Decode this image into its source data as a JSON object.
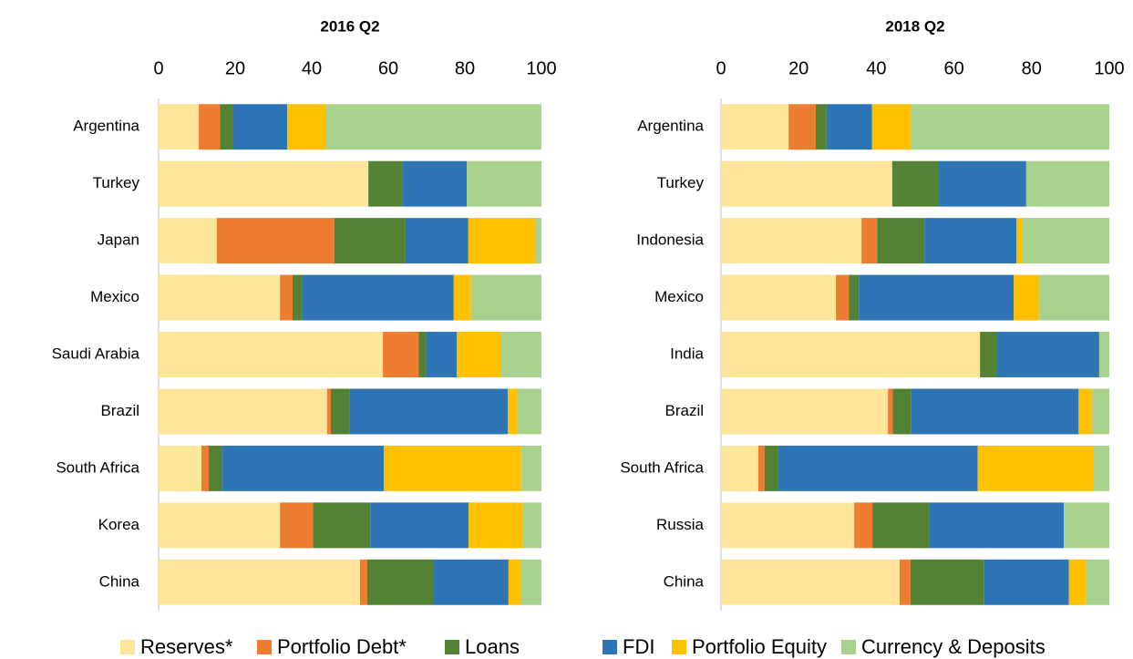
{
  "chart_data": [
    {
      "type": "bar",
      "orientation": "horizontal",
      "stacked": true,
      "title": "2016 Q2",
      "categories": [
        "Argentina",
        "Turkey",
        "Japan",
        "Mexico",
        "Saudi Arabia",
        "Brazil",
        "South Africa",
        "Korea",
        "China"
      ],
      "xlim": [
        0,
        100
      ],
      "xticks": [
        0,
        20,
        40,
        60,
        80,
        100
      ],
      "series": [
        {
          "name": "Reserves*",
          "color": "#fde699",
          "values": [
            10.5,
            54.8,
            15.2,
            31.7,
            58.6,
            44,
            11.2,
            31.7,
            52.6
          ]
        },
        {
          "name": "Portfolio Debt*",
          "color": "#ed7d31",
          "values": [
            5.5,
            0,
            30.7,
            3.3,
            9.3,
            1,
            1.9,
            8.6,
            1.9
          ]
        },
        {
          "name": "Loans",
          "color": "#548235",
          "values": [
            3.3,
            8.8,
            18.6,
            2.6,
            1.9,
            4.8,
            3.6,
            15,
            17.4
          ]
        },
        {
          "name": "FDI",
          "color": "#2e75b6",
          "values": [
            14.3,
            16.9,
            16.4,
            39.5,
            8.1,
            41.4,
            42.1,
            25.7,
            19.5
          ]
        },
        {
          "name": "Portfolio Equity",
          "color": "#ffc000",
          "values": [
            10,
            0,
            17.4,
            4.5,
            11.4,
            2.4,
            36,
            14,
            3.1
          ]
        },
        {
          "name": "Currency & Deposits",
          "color": "#a9d18e",
          "values": [
            56.4,
            19.5,
            1.7,
            18.4,
            10.7,
            6.4,
            5.2,
            5,
            5.5
          ]
        }
      ]
    },
    {
      "type": "bar",
      "orientation": "horizontal",
      "stacked": true,
      "title": "2018 Q2",
      "categories": [
        "Argentina",
        "Turkey",
        "Indonesia",
        "Mexico",
        "India",
        "Brazil",
        "South Africa",
        "Russia",
        "China"
      ],
      "xlim": [
        0,
        100
      ],
      "xticks": [
        0,
        20,
        40,
        60,
        80,
        100
      ],
      "series": [
        {
          "name": "Reserves*",
          "color": "#fde699",
          "values": [
            17.4,
            44.1,
            36.2,
            29.6,
            66.7,
            43,
            9.6,
            34.3,
            46
          ]
        },
        {
          "name": "Portfolio Debt*",
          "color": "#ed7d31",
          "values": [
            7,
            0,
            4,
            3.3,
            0,
            1.2,
            1.6,
            4.7,
            2.8
          ]
        },
        {
          "name": "Loans",
          "color": "#548235",
          "values": [
            2.8,
            12,
            12.2,
            2.6,
            4.2,
            4.7,
            3.5,
            14.6,
            19
          ]
        },
        {
          "name": "FDI",
          "color": "#2e75b6",
          "values": [
            11.7,
            22.5,
            23.7,
            39.9,
            26.5,
            43.2,
            51.4,
            34.7,
            21.8
          ]
        },
        {
          "name": "Portfolio Equity",
          "color": "#ffc000",
          "values": [
            9.9,
            0,
            1.6,
            6.6,
            0,
            3.5,
            29.8,
            0,
            4.5
          ]
        },
        {
          "name": "Currency & Deposits",
          "color": "#a9d18e",
          "values": [
            51.2,
            21.4,
            22.3,
            18,
            2.6,
            4.4,
            4.1,
            11.7,
            5.9
          ]
        }
      ]
    }
  ]
}
